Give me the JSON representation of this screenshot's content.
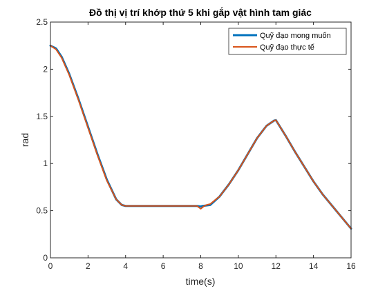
{
  "chart_data": {
    "type": "line",
    "title": "Đồ thị vị trí khớp thứ 5 khi gắp vật hình tam giác",
    "xlabel": "time(s)",
    "ylabel": "rad",
    "xlim": [
      0,
      16
    ],
    "ylim": [
      0,
      2.5
    ],
    "xticks": [
      0,
      2,
      4,
      6,
      8,
      10,
      12,
      14,
      16
    ],
    "yticks": [
      0,
      0.5,
      1,
      1.5,
      2,
      2.5
    ],
    "xtick_labels": [
      "0",
      "2",
      "4",
      "6",
      "8",
      "10",
      "12",
      "14",
      "16"
    ],
    "ytick_labels": [
      "0",
      "0.5",
      "1",
      "1.5",
      "2",
      "2.5"
    ],
    "grid": false,
    "legend_position": "top-right",
    "series": [
      {
        "name": "Quỹ đạo mong muốn",
        "color": "#0072BD",
        "points": [
          [
            0,
            2.25
          ],
          [
            0.3,
            2.22
          ],
          [
            0.6,
            2.13
          ],
          [
            1.0,
            1.95
          ],
          [
            1.5,
            1.68
          ],
          [
            2.0,
            1.39
          ],
          [
            2.5,
            1.1
          ],
          [
            3.0,
            0.83
          ],
          [
            3.5,
            0.62
          ],
          [
            3.8,
            0.56
          ],
          [
            4.0,
            0.55
          ],
          [
            5.0,
            0.55
          ],
          [
            6.0,
            0.55
          ],
          [
            7.0,
            0.55
          ],
          [
            7.8,
            0.55
          ],
          [
            8.0,
            0.545
          ],
          [
            8.1,
            0.55
          ],
          [
            8.5,
            0.56
          ],
          [
            9.0,
            0.65
          ],
          [
            9.5,
            0.78
          ],
          [
            10.0,
            0.93
          ],
          [
            10.5,
            1.1
          ],
          [
            11.0,
            1.27
          ],
          [
            11.5,
            1.4
          ],
          [
            11.9,
            1.455
          ],
          [
            12.0,
            1.46
          ],
          [
            12.5,
            1.3
          ],
          [
            13.0,
            1.13
          ],
          [
            13.5,
            0.97
          ],
          [
            14.0,
            0.81
          ],
          [
            14.5,
            0.67
          ],
          [
            15.0,
            0.55
          ],
          [
            15.5,
            0.43
          ],
          [
            16.0,
            0.31
          ]
        ]
      },
      {
        "name": "Quỹ đạo thực tế",
        "color": "#D95319",
        "points": [
          [
            0,
            2.25
          ],
          [
            0.3,
            2.21
          ],
          [
            0.6,
            2.12
          ],
          [
            1.0,
            1.94
          ],
          [
            1.5,
            1.67
          ],
          [
            2.0,
            1.38
          ],
          [
            2.5,
            1.09
          ],
          [
            3.0,
            0.82
          ],
          [
            3.5,
            0.62
          ],
          [
            3.8,
            0.56
          ],
          [
            4.0,
            0.55
          ],
          [
            5.0,
            0.55
          ],
          [
            6.0,
            0.55
          ],
          [
            7.0,
            0.55
          ],
          [
            7.8,
            0.55
          ],
          [
            8.0,
            0.52
          ],
          [
            8.15,
            0.545
          ],
          [
            8.3,
            0.56
          ],
          [
            8.5,
            0.57
          ],
          [
            9.0,
            0.65
          ],
          [
            9.5,
            0.78
          ],
          [
            10.0,
            0.93
          ],
          [
            10.5,
            1.1
          ],
          [
            11.0,
            1.27
          ],
          [
            11.5,
            1.4
          ],
          [
            11.9,
            1.455
          ],
          [
            12.0,
            1.46
          ],
          [
            12.5,
            1.3
          ],
          [
            13.0,
            1.13
          ],
          [
            13.5,
            0.97
          ],
          [
            14.0,
            0.81
          ],
          [
            14.5,
            0.67
          ],
          [
            15.0,
            0.55
          ],
          [
            15.5,
            0.43
          ],
          [
            16.0,
            0.31
          ]
        ]
      }
    ]
  }
}
